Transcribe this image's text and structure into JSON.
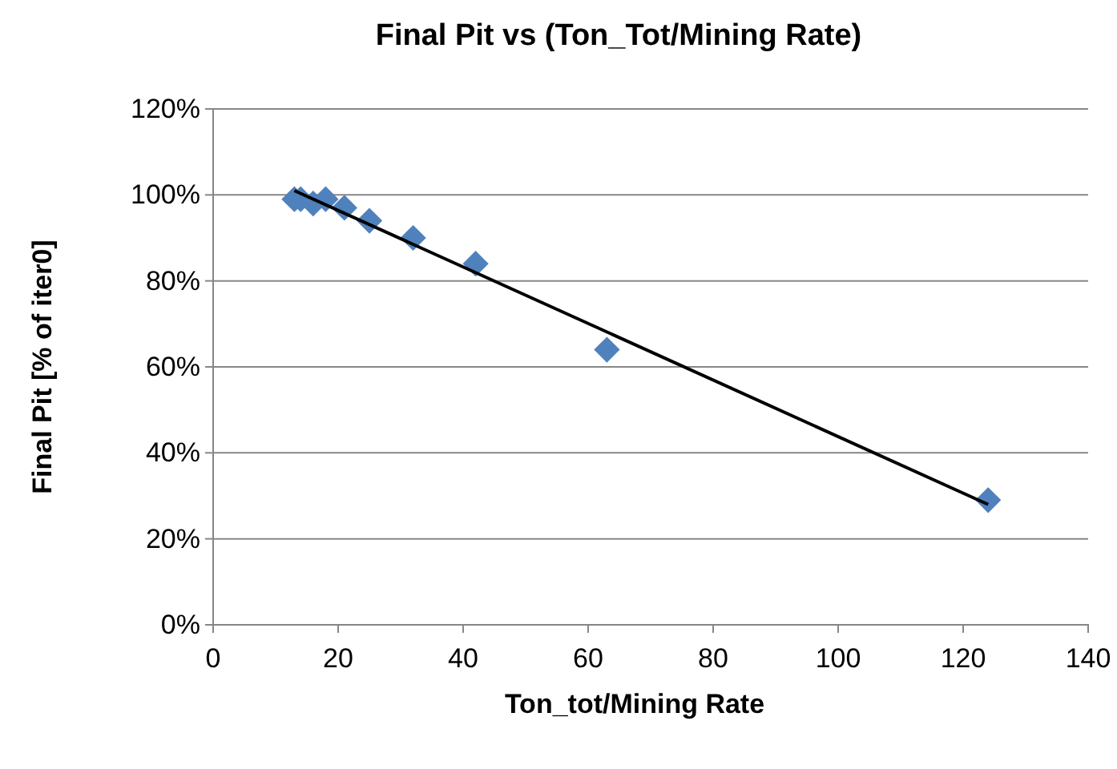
{
  "chart_data": {
    "type": "scatter",
    "title": "Final Pit vs (Ton_Tot/Mining Rate)",
    "xlabel": "Ton_tot/Mining Rate",
    "ylabel": "Final Pit [% of iter0]",
    "x": [
      13,
      14,
      16,
      18,
      21,
      25,
      32,
      42,
      63,
      124
    ],
    "series": [
      {
        "color": "#4f81bd",
        "marker": "diamond",
        "values": [
          99,
          99,
          98,
          99,
          97,
          94,
          90,
          84,
          64,
          29
        ]
      },
      {
        "type": "line",
        "color": "#000000",
        "marker": "none",
        "line_style": "solid",
        "x": [
          13,
          124
        ],
        "values": [
          101,
          28
        ]
      }
    ],
    "xlim": [
      0,
      140
    ],
    "xticks": [
      0,
      20,
      40,
      60,
      80,
      100,
      120,
      140
    ],
    "ylim": [
      0,
      120
    ],
    "yticks": [
      {
        "value": 0,
        "label": "0%"
      },
      {
        "value": 20,
        "label": "20%"
      },
      {
        "value": 40,
        "label": "40%"
      },
      {
        "value": 60,
        "label": "60%"
      },
      {
        "value": 80,
        "label": "80%"
      },
      {
        "value": 100,
        "label": "100%"
      },
      {
        "value": 120,
        "label": "120%"
      }
    ],
    "grid": "y"
  }
}
